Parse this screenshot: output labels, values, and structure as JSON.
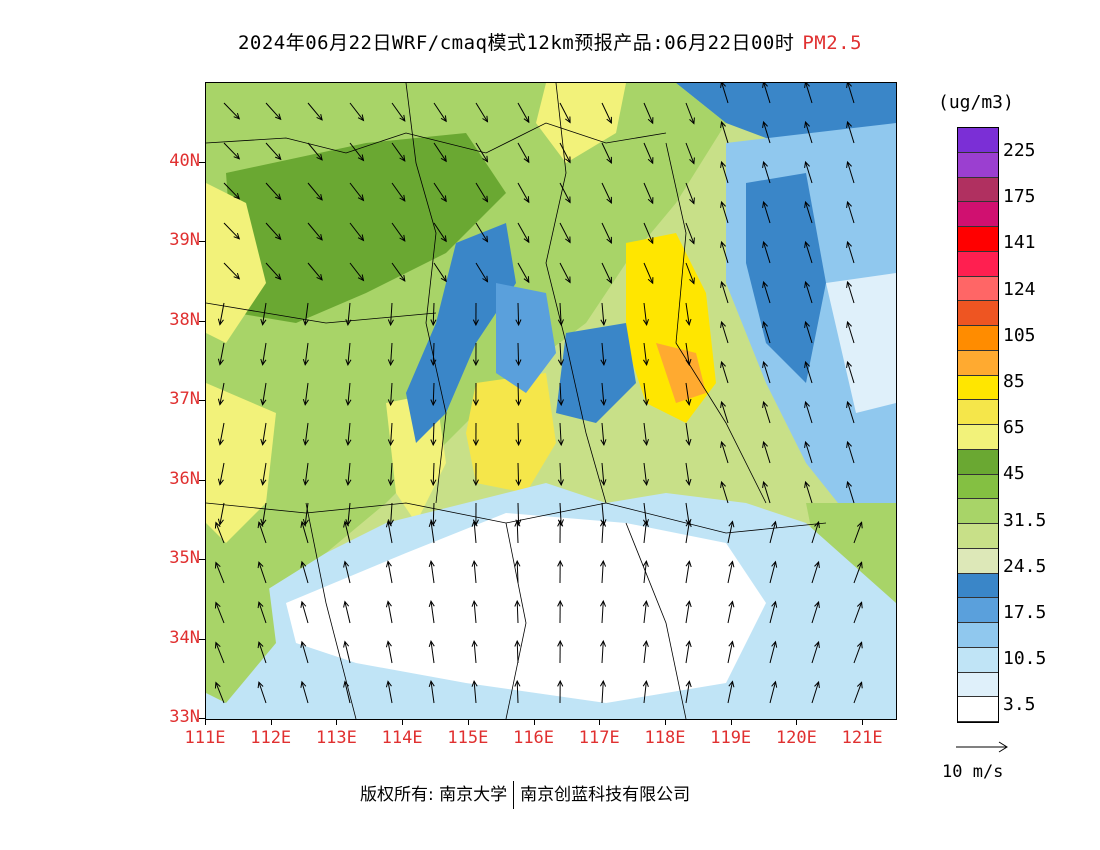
{
  "header": {
    "title": "2024年06月22日WRF/cmaq模式12km预报产品:06月22日00时",
    "variable": "PM2.5"
  },
  "map": {
    "lat_labels": [
      "40N",
      "39N",
      "38N",
      "37N",
      "36N",
      "35N",
      "34N",
      "33N"
    ],
    "lon_labels": [
      "111E",
      "112E",
      "113E",
      "114E",
      "115E",
      "116E",
      "117E",
      "118E",
      "119E",
      "120E",
      "121E"
    ],
    "lat_range": [
      33,
      41
    ],
    "lon_range": [
      111,
      121.5
    ]
  },
  "legend": {
    "unit": "(ug/m3)",
    "colors": [
      "#7b2fd6",
      "#9b3fd0",
      "#b03060",
      "#d01070",
      "#ff0000",
      "#ff1f50",
      "#ff6666",
      "#ee5522",
      "#ff8c00",
      "#ffaa30",
      "#ffe600",
      "#f5e64a",
      "#f2f27a",
      "#6aa832",
      "#84c042",
      "#a8d468",
      "#c8e088",
      "#dde8b8",
      "#3a86c8",
      "#5aa0dc",
      "#90c8ee",
      "#c0e4f6",
      "#dff0fa",
      "#ffffff"
    ],
    "labels": [
      "225",
      "175",
      "141",
      "124",
      "105",
      "85",
      "65",
      "45",
      "31.5",
      "24.5",
      "17.5",
      "10.5",
      "3.5"
    ]
  },
  "wind_reference": {
    "label": "10 m/s"
  },
  "footer": {
    "left": "版权所有: 南京大学",
    "right": "南京创蓝科技有限公司"
  }
}
